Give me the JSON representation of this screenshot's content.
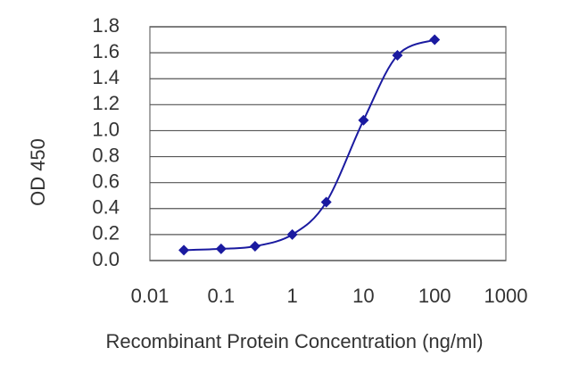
{
  "chart_data": {
    "type": "line",
    "xlabel": "Recombinant Protein Concentration (ng/ml)",
    "ylabel": "OD 450",
    "xscale": "log",
    "x": [
      0.03,
      0.1,
      0.3,
      1,
      3,
      10,
      30,
      100
    ],
    "series": [
      {
        "color": "#1a1aa0",
        "values": [
          0.08,
          0.09,
          0.11,
          0.2,
          0.45,
          1.08,
          1.58,
          1.7
        ]
      }
    ],
    "xlim": [
      0.01,
      1000
    ],
    "xticks": [
      0.01,
      0.1,
      1,
      10,
      100,
      1000
    ],
    "ylim": [
      0,
      1.8
    ],
    "yticks": [
      {
        "value": 0,
        "label": "0.0"
      },
      0.2,
      0.4,
      0.6,
      0.8,
      {
        "value": 1,
        "label": "1.0"
      },
      1.2,
      1.4,
      1.6,
      1.8
    ],
    "grid": true
  }
}
